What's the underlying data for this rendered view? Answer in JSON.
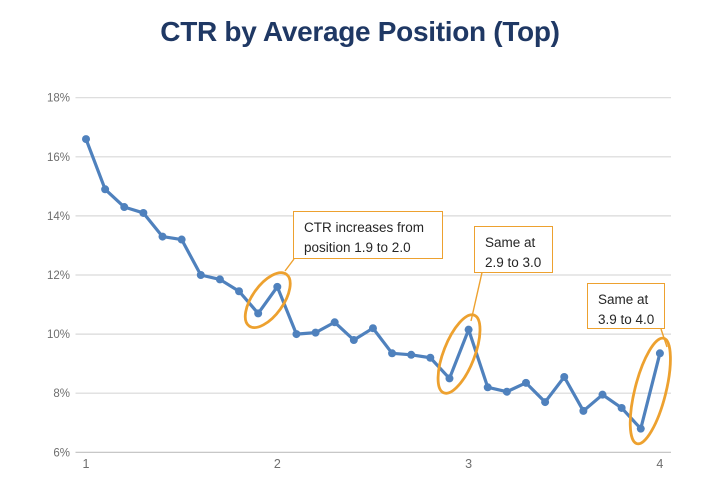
{
  "title": "CTR by Average Position (Top)",
  "chart_data": {
    "type": "line",
    "series_name": "CTR",
    "x": [
      1.0,
      1.1,
      1.2,
      1.3,
      1.4,
      1.5,
      1.6,
      1.7,
      1.8,
      1.9,
      2.0,
      2.1,
      2.2,
      2.3,
      2.4,
      2.5,
      2.6,
      2.7,
      2.8,
      2.9,
      3.0,
      3.1,
      3.2,
      3.3,
      3.4,
      3.5,
      3.6,
      3.7,
      3.8,
      3.9,
      4.0
    ],
    "values": [
      16.6,
      14.9,
      14.3,
      14.1,
      13.3,
      13.2,
      12.0,
      11.85,
      11.45,
      10.7,
      11.6,
      10.0,
      10.05,
      10.4,
      9.8,
      10.2,
      9.35,
      9.3,
      9.2,
      8.5,
      10.15,
      8.2,
      8.05,
      8.35,
      7.7,
      8.55,
      7.4,
      7.95,
      7.5,
      6.8,
      9.35
    ],
    "title": "CTR by Average Position (Top)",
    "xlabel": "",
    "ylabel": "",
    "x_ticks": [
      1,
      2,
      3,
      4
    ],
    "y_axis": {
      "min": 6,
      "max": 18,
      "step": 2,
      "format": "percent"
    },
    "grid": "horizontal",
    "legend": "none",
    "marker": "circle"
  },
  "annotations": [
    {
      "line1": "CTR increases from",
      "line2": "position 1.9 to 2.0",
      "highlight_range": [
        1.9,
        2.0
      ]
    },
    {
      "line1": "Same at",
      "line2": "2.9 to 3.0",
      "highlight_range": [
        2.9,
        3.0
      ]
    },
    {
      "line1": "Same at",
      "line2": "3.9 to 4.0",
      "highlight_range": [
        3.9,
        4.0
      ]
    }
  ],
  "colors": {
    "title": "#1F3864",
    "line": "#4F81BD",
    "marker": "#4F81BD",
    "annotation_orange": "#EDA12F",
    "grid": "#D9D9D9",
    "axis_line": "#BFBFBF",
    "tick_label": "#6E6E6E",
    "background": "#FFFFFF"
  }
}
